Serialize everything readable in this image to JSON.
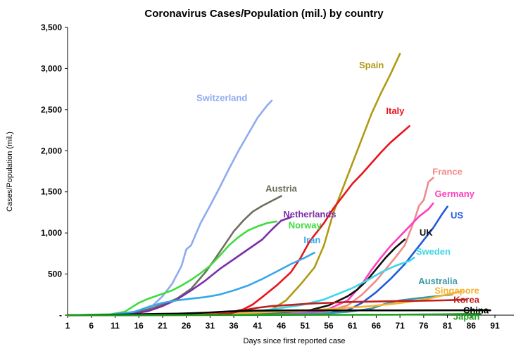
{
  "chart_data": {
    "type": "line",
    "title": "Coronavirus Cases/Population (mil.) by country",
    "xlabel": "Days since first reported case",
    "ylabel": "Cases/Population (mil.)",
    "xlim": [
      1,
      95
    ],
    "ylim": [
      0,
      3500
    ],
    "xticks": [
      1,
      6,
      11,
      16,
      21,
      26,
      31,
      36,
      41,
      46,
      51,
      56,
      61,
      66,
      71,
      76,
      81,
      86,
      91
    ],
    "yticks": [
      {
        "value": 0,
        "label": "-"
      },
      {
        "value": 500,
        "label": "500"
      },
      {
        "value": 1000,
        "label": "1,000"
      },
      {
        "value": 1500,
        "label": "1,500"
      },
      {
        "value": 2000,
        "label": "2,000"
      },
      {
        "value": 2500,
        "label": "2,500"
      },
      {
        "value": 3000,
        "label": "3,000"
      },
      {
        "value": 3500,
        "label": "3,500"
      }
    ],
    "series": [
      {
        "name": "Switzerland",
        "color": "#8eaaf0",
        "label_at": [
          33.5,
          2640
        ],
        "points": [
          [
            1,
            0
          ],
          [
            8,
            3
          ],
          [
            12,
            10
          ],
          [
            15,
            30
          ],
          [
            17,
            60
          ],
          [
            19,
            120
          ],
          [
            21,
            230
          ],
          [
            23,
            380
          ],
          [
            25,
            600
          ],
          [
            26,
            800
          ],
          [
            27,
            850
          ],
          [
            29,
            1120
          ],
          [
            31,
            1330
          ],
          [
            33,
            1550
          ],
          [
            35,
            1780
          ],
          [
            37,
            2000
          ],
          [
            39,
            2200
          ],
          [
            41,
            2400
          ],
          [
            43,
            2550
          ],
          [
            44,
            2610
          ]
        ]
      },
      {
        "name": "Spain",
        "color": "#b09a12",
        "label_at": [
          65,
          3040
        ],
        "points": [
          [
            1,
            0
          ],
          [
            30,
            2
          ],
          [
            40,
            20
          ],
          [
            44,
            70
          ],
          [
            47,
            180
          ],
          [
            50,
            370
          ],
          [
            53,
            580
          ],
          [
            55,
            850
          ],
          [
            57,
            1250
          ],
          [
            59,
            1550
          ],
          [
            61,
            1850
          ],
          [
            63,
            2150
          ],
          [
            65,
            2450
          ],
          [
            67,
            2700
          ],
          [
            69,
            2930
          ],
          [
            71,
            3180
          ]
        ]
      },
      {
        "name": "Italy",
        "color": "#e8141c",
        "label_at": [
          70,
          2480
        ],
        "points": [
          [
            1,
            0
          ],
          [
            25,
            2
          ],
          [
            30,
            10
          ],
          [
            35,
            30
          ],
          [
            38,
            70
          ],
          [
            40,
            130
          ],
          [
            42,
            220
          ],
          [
            45,
            360
          ],
          [
            48,
            520
          ],
          [
            50,
            690
          ],
          [
            52,
            900
          ],
          [
            55,
            1120
          ],
          [
            57,
            1300
          ],
          [
            59,
            1450
          ],
          [
            61,
            1600
          ],
          [
            63,
            1720
          ],
          [
            65,
            1850
          ],
          [
            67,
            1980
          ],
          [
            69,
            2100
          ],
          [
            71,
            2200
          ],
          [
            73,
            2300
          ]
        ]
      },
      {
        "name": "France",
        "color": "#f08a8a",
        "label_at": [
          81,
          1740
        ],
        "points": [
          [
            1,
            0
          ],
          [
            30,
            2
          ],
          [
            45,
            10
          ],
          [
            55,
            40
          ],
          [
            60,
            120
          ],
          [
            63,
            250
          ],
          [
            66,
            420
          ],
          [
            68,
            560
          ],
          [
            70,
            700
          ],
          [
            72,
            850
          ],
          [
            73,
            1000
          ],
          [
            74,
            1150
          ],
          [
            75,
            1330
          ],
          [
            76,
            1400
          ],
          [
            77,
            1620
          ],
          [
            78,
            1670
          ]
        ]
      },
      {
        "name": "Germany",
        "color": "#ff3fbf",
        "label_at": [
          82.5,
          1470
        ],
        "points": [
          [
            1,
            0
          ],
          [
            30,
            3
          ],
          [
            45,
            15
          ],
          [
            55,
            50
          ],
          [
            60,
            180
          ],
          [
            63,
            380
          ],
          [
            65,
            550
          ],
          [
            67,
            700
          ],
          [
            69,
            840
          ],
          [
            71,
            960
          ],
          [
            73,
            1080
          ],
          [
            75,
            1200
          ],
          [
            77,
            1290
          ],
          [
            78,
            1360
          ]
        ]
      },
      {
        "name": "US",
        "color": "#1e5adc",
        "label_at": [
          83,
          1210
        ],
        "points": [
          [
            1,
            0
          ],
          [
            40,
            3
          ],
          [
            55,
            20
          ],
          [
            60,
            60
          ],
          [
            63,
            150
          ],
          [
            66,
            280
          ],
          [
            69,
            440
          ],
          [
            72,
            620
          ],
          [
            75,
            840
          ],
          [
            78,
            1060
          ],
          [
            80,
            1240
          ],
          [
            81,
            1320
          ]
        ]
      },
      {
        "name": "Austria",
        "color": "#6e6e5e",
        "label_at": [
          46,
          1535
        ],
        "points": [
          [
            1,
            0
          ],
          [
            10,
            5
          ],
          [
            15,
            30
          ],
          [
            18,
            70
          ],
          [
            21,
            130
          ],
          [
            24,
            200
          ],
          [
            27,
            320
          ],
          [
            30,
            520
          ],
          [
            32,
            680
          ],
          [
            34,
            850
          ],
          [
            36,
            1020
          ],
          [
            38,
            1150
          ],
          [
            40,
            1260
          ],
          [
            42,
            1330
          ],
          [
            44,
            1390
          ],
          [
            46,
            1450
          ]
        ]
      },
      {
        "name": "Netherlands",
        "color": "#7a2fa8",
        "label_at": [
          52,
          1225
        ],
        "points": [
          [
            1,
            0
          ],
          [
            10,
            3
          ],
          [
            15,
            20
          ],
          [
            18,
            50
          ],
          [
            21,
            110
          ],
          [
            24,
            190
          ],
          [
            27,
            300
          ],
          [
            30,
            420
          ],
          [
            33,
            560
          ],
          [
            36,
            680
          ],
          [
            39,
            800
          ],
          [
            42,
            920
          ],
          [
            44,
            1040
          ],
          [
            46,
            1150
          ],
          [
            48,
            1190
          ]
        ]
      },
      {
        "name": "Norway",
        "color": "#3edd3e",
        "label_at": [
          51,
          1090
        ],
        "points": [
          [
            1,
            0
          ],
          [
            10,
            10
          ],
          [
            13,
            40
          ],
          [
            16,
            150
          ],
          [
            18,
            200
          ],
          [
            21,
            260
          ],
          [
            23,
            300
          ],
          [
            25,
            360
          ],
          [
            27,
            430
          ],
          [
            29,
            510
          ],
          [
            31,
            600
          ],
          [
            33,
            720
          ],
          [
            35,
            850
          ],
          [
            37,
            950
          ],
          [
            39,
            1030
          ],
          [
            41,
            1080
          ],
          [
            43,
            1120
          ],
          [
            45,
            1140
          ]
        ]
      },
      {
        "name": "Iran",
        "color": "#36a8ea",
        "label_at": [
          52.5,
          910
        ],
        "points": [
          [
            1,
            0
          ],
          [
            10,
            5
          ],
          [
            15,
            40
          ],
          [
            18,
            100
          ],
          [
            21,
            150
          ],
          [
            24,
            180
          ],
          [
            27,
            200
          ],
          [
            30,
            220
          ],
          [
            33,
            250
          ],
          [
            36,
            300
          ],
          [
            39,
            360
          ],
          [
            42,
            440
          ],
          [
            45,
            530
          ],
          [
            48,
            620
          ],
          [
            51,
            700
          ],
          [
            53,
            760
          ]
        ]
      },
      {
        "name": "UK",
        "color": "#111111",
        "label_at": [
          76.5,
          1000
        ],
        "points": [
          [
            1,
            0
          ],
          [
            25,
            3
          ],
          [
            35,
            10
          ],
          [
            45,
            30
          ],
          [
            52,
            60
          ],
          [
            56,
            120
          ],
          [
            60,
            230
          ],
          [
            62,
            310
          ],
          [
            64,
            420
          ],
          [
            66,
            560
          ],
          [
            68,
            700
          ],
          [
            70,
            820
          ],
          [
            72,
            920
          ]
        ]
      },
      {
        "name": "Sweden",
        "color": "#3ed6e8",
        "label_at": [
          78,
          770
        ],
        "points": [
          [
            1,
            0
          ],
          [
            25,
            5
          ],
          [
            35,
            20
          ],
          [
            40,
            40
          ],
          [
            45,
            80
          ],
          [
            50,
            120
          ],
          [
            55,
            190
          ],
          [
            58,
            260
          ],
          [
            61,
            330
          ],
          [
            64,
            420
          ],
          [
            67,
            520
          ],
          [
            70,
            600
          ],
          [
            73,
            660
          ],
          [
            74,
            700
          ]
        ]
      },
      {
        "name": "Australia",
        "color": "#3c98a8",
        "label_at": [
          79,
          410
        ],
        "points": [
          [
            1,
            0
          ],
          [
            20,
            2
          ],
          [
            30,
            5
          ],
          [
            40,
            10
          ],
          [
            50,
            15
          ],
          [
            55,
            20
          ],
          [
            60,
            40
          ],
          [
            65,
            80
          ],
          [
            68,
            140
          ],
          [
            71,
            180
          ],
          [
            74,
            200
          ],
          [
            77,
            220
          ],
          [
            80,
            240
          ],
          [
            82,
            250
          ]
        ]
      },
      {
        "name": "Singapore",
        "color": "#f5b12f",
        "label_at": [
          83,
          295
        ],
        "points": [
          [
            1,
            0
          ],
          [
            20,
            3
          ],
          [
            30,
            15
          ],
          [
            40,
            30
          ],
          [
            50,
            50
          ],
          [
            55,
            70
          ],
          [
            60,
            90
          ],
          [
            65,
            110
          ],
          [
            70,
            140
          ],
          [
            74,
            170
          ],
          [
            77,
            200
          ],
          [
            80,
            240
          ],
          [
            84,
            290
          ]
        ]
      },
      {
        "name": "Korea",
        "color": "#bf1f1f",
        "label_at": [
          85,
          185
        ],
        "points": [
          [
            1,
            0
          ],
          [
            30,
            5
          ],
          [
            35,
            20
          ],
          [
            38,
            60
          ],
          [
            41,
            90
          ],
          [
            44,
            110
          ],
          [
            48,
            125
          ],
          [
            52,
            140
          ],
          [
            56,
            150
          ],
          [
            60,
            160
          ],
          [
            65,
            165
          ],
          [
            70,
            170
          ],
          [
            75,
            175
          ],
          [
            80,
            180
          ],
          [
            85,
            190
          ]
        ]
      },
      {
        "name": "China",
        "color": "#000000",
        "label_at": [
          87,
          55
        ],
        "points": [
          [
            1,
            0
          ],
          [
            10,
            5
          ],
          [
            15,
            10
          ],
          [
            20,
            15
          ],
          [
            25,
            20
          ],
          [
            30,
            30
          ],
          [
            35,
            45
          ],
          [
            40,
            55
          ],
          [
            45,
            57
          ],
          [
            50,
            58
          ],
          [
            60,
            58
          ],
          [
            70,
            58
          ],
          [
            80,
            59
          ],
          [
            90,
            59
          ]
        ]
      },
      {
        "name": "Japan",
        "color": "#1ea01e",
        "label_at": [
          85,
          -20
        ],
        "points": [
          [
            1,
            0
          ],
          [
            20,
            1
          ],
          [
            40,
            2
          ],
          [
            50,
            3
          ],
          [
            60,
            4
          ],
          [
            70,
            6
          ],
          [
            80,
            10
          ],
          [
            88,
            15
          ]
        ]
      }
    ]
  }
}
